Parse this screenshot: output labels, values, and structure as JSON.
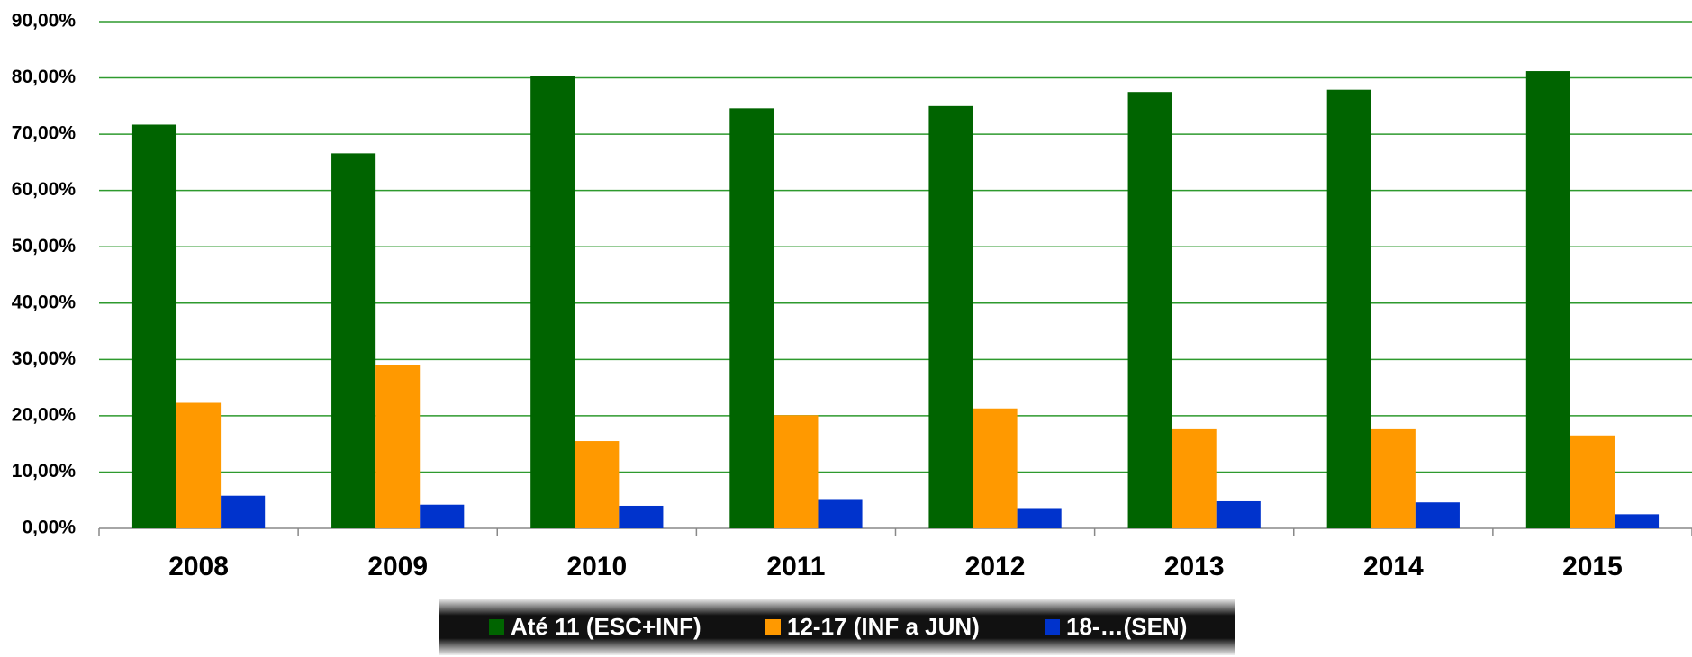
{
  "chart_data": {
    "type": "bar",
    "categories": [
      "2008",
      "2009",
      "2010",
      "2011",
      "2012",
      "2013",
      "2014",
      "2015"
    ],
    "series": [
      {
        "name": "Até 11 (ESC+INF)",
        "color": "#006400",
        "values": [
          71.7,
          66.6,
          80.4,
          74.6,
          75.0,
          77.5,
          77.9,
          81.2
        ]
      },
      {
        "name": "12-17 (INF a JUN)",
        "color": "#ff9900",
        "values": [
          22.3,
          29.0,
          15.5,
          20.1,
          21.3,
          17.6,
          17.6,
          16.5
        ]
      },
      {
        "name": "18-…(SEN)",
        "color": "#0033cc",
        "values": [
          5.8,
          4.2,
          4.0,
          5.2,
          3.6,
          4.8,
          4.6,
          2.5
        ]
      }
    ],
    "ylim": [
      0,
      90
    ],
    "yticks": [
      {
        "value": 0,
        "label": "0,00%"
      },
      {
        "value": 10,
        "label": "10,00%"
      },
      {
        "value": 20,
        "label": "20,00%"
      },
      {
        "value": 30,
        "label": "30,00%"
      },
      {
        "value": 40,
        "label": "40,00%"
      },
      {
        "value": 50,
        "label": "50,00%"
      },
      {
        "value": 60,
        "label": "60,00%"
      },
      {
        "value": 70,
        "label": "70,00%"
      },
      {
        "value": 80,
        "label": "80,00%"
      },
      {
        "value": 90,
        "label": "90,00%"
      }
    ],
    "grid": true,
    "grid_color": "#2e9a2e",
    "legend": "bottom"
  }
}
